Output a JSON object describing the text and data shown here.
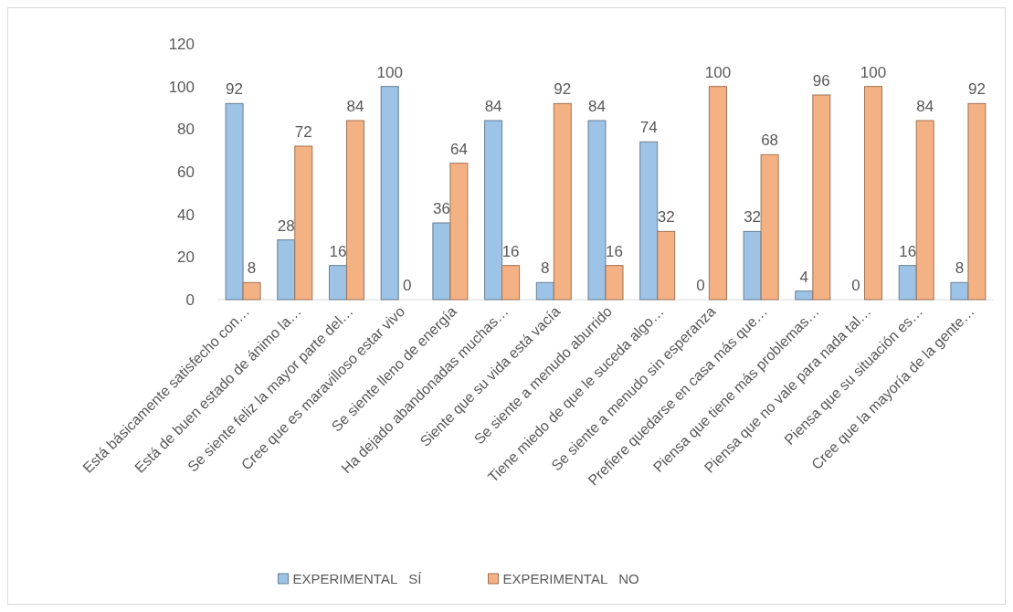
{
  "chart_data": {
    "type": "bar",
    "categories": [
      "Está básicamente satisfecho con…",
      "Está de buen estado de ánimo la…",
      "Se siente feliz la mayor parte del…",
      "Cree que es maravilloso estar vivo",
      "Se siente lleno de energía",
      "Ha dejado abandonadas muchas…",
      "Siente que su vida está vacía",
      "Se siente a menudo aburrido",
      "Tiene miedo de que le suceda algo…",
      "Se siente a menudo sin esperanza",
      "Prefiere quedarse en casa más que…",
      "Piensa que tiene más problemas…",
      "Piensa que no vale para nada tal…",
      "Piensa que su situación es…",
      "Cree que la mayoría de la gente…"
    ],
    "series": [
      {
        "name": "EXPERIMENTAL   SÍ",
        "color": "#9dc3e6",
        "values": [
          92,
          28,
          16,
          100,
          36,
          84,
          8,
          84,
          74,
          0,
          32,
          4,
          0,
          16,
          8
        ]
      },
      {
        "name": "EXPERIMENTAL   NO",
        "color": "#f4b183",
        "values": [
          8,
          72,
          84,
          0,
          64,
          16,
          92,
          16,
          32,
          100,
          68,
          96,
          100,
          84,
          92
        ]
      }
    ],
    "ylim": [
      0,
      120
    ],
    "yticks": [
      0,
      20,
      40,
      60,
      80,
      100,
      120
    ],
    "grid": false,
    "legend": "bottom",
    "data_labels": true
  }
}
